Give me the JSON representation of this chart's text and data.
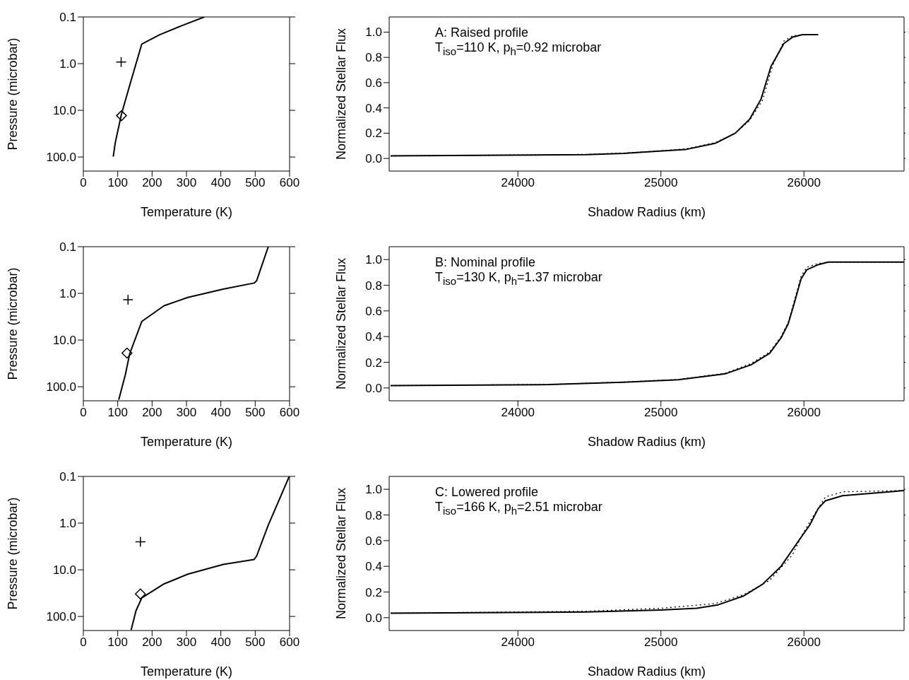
{
  "chart_data": [
    {
      "type": "line",
      "xlabel": "Temperature (K)",
      "ylabel": "Pressure (microbar)",
      "xlim": [
        0,
        600
      ],
      "xticks": [
        0,
        100,
        200,
        300,
        400,
        500,
        600
      ],
      "ylim": [
        200,
        0.1
      ],
      "yticks": [
        {
          "value": 0.1,
          "label": "0.1"
        },
        {
          "value": 1,
          "label": "1.0"
        },
        {
          "value": 10,
          "label": "10.0"
        },
        {
          "value": 100,
          "label": "100.0"
        }
      ],
      "log": "y",
      "series": [
        {
          "color": "#000000",
          "x": [
            87,
            93,
            111,
            135,
            170,
            222,
            290,
            352
          ],
          "values": [
            98,
            49,
            12,
            2.9,
            0.38,
            0.24,
            0.15,
            0.1
          ]
        },
        {
          "type": "scatter",
          "marker": "cross",
          "color": "#000000",
          "x": [
            110
          ],
          "values": [
            0.92
          ]
        },
        {
          "type": "scatter",
          "marker": "diamond",
          "color": "#000000",
          "x": [
            111
          ],
          "values": [
            13
          ]
        }
      ]
    },
    {
      "type": "line",
      "xlabel": "Shadow Radius (km)",
      "ylabel": "Normalized Stellar Flux",
      "xlim": [
        23100,
        26700
      ],
      "xticks": [
        24000,
        25000,
        26000
      ],
      "ylim": [
        -0.1,
        1.12
      ],
      "yticks": [
        {
          "value": 0,
          "label": "0.0"
        },
        {
          "value": 0.2,
          "label": "0.2"
        },
        {
          "value": 0.4,
          "label": "0.4"
        },
        {
          "value": 0.6,
          "label": "0.6"
        },
        {
          "value": 0.8,
          "label": "0.8"
        },
        {
          "value": 1,
          "label": "1.0"
        }
      ],
      "annotations": [
        "A: Raised profile",
        "T$_{iso}$=110 K, p$_{h}$=0.92 microbar"
      ],
      "series": [
        {
          "color": "#000000",
          "line_style": "solid",
          "x": [
            23110,
            24480,
            24740,
            24990,
            25170,
            25380,
            25520,
            25620,
            25700,
            25770,
            25860,
            25920,
            25990,
            26100
          ],
          "values": [
            0.02,
            0.03,
            0.04,
            0.058,
            0.07,
            0.12,
            0.2,
            0.31,
            0.47,
            0.73,
            0.91,
            0.96,
            0.98,
            0.98
          ]
        },
        {
          "color": "#000000",
          "line_style": "dotted",
          "x": [
            23110,
            24480,
            24740,
            24990,
            25170,
            25380,
            25520,
            25620,
            25710,
            25780,
            25860,
            25920,
            25990,
            26100
          ],
          "values": [
            0.02,
            0.032,
            0.042,
            0.06,
            0.075,
            0.125,
            0.2,
            0.3,
            0.46,
            0.73,
            0.93,
            0.97,
            0.98,
            0.98
          ]
        }
      ]
    },
    {
      "type": "line",
      "xlabel": "Temperature (K)",
      "ylabel": "Pressure (microbar)",
      "xlim": [
        0,
        600
      ],
      "xticks": [
        0,
        100,
        200,
        300,
        400,
        500,
        600
      ],
      "ylim": [
        200,
        0.1
      ],
      "yticks": [
        {
          "value": 0.1,
          "label": "0.1"
        },
        {
          "value": 1,
          "label": "1.0"
        },
        {
          "value": 10,
          "label": "10.0"
        },
        {
          "value": 100,
          "label": "100.0"
        }
      ],
      "log": "y",
      "series": [
        {
          "color": "#000000",
          "x": [
            103,
            122,
            135,
            170,
            235,
            304,
            407,
            497,
            504,
            538
          ],
          "values": [
            190,
            56,
            19.5,
            4,
            1.84,
            1.22,
            0.81,
            0.6,
            0.54,
            0.1
          ]
        },
        {
          "type": "scatter",
          "marker": "cross",
          "color": "#000000",
          "x": [
            130
          ],
          "values": [
            1.37
          ]
        },
        {
          "type": "scatter",
          "marker": "diamond",
          "color": "#000000",
          "x": [
            127
          ],
          "values": [
            19
          ]
        }
      ]
    },
    {
      "type": "line",
      "xlabel": "Shadow Radius (km)",
      "ylabel": "Normalized Stellar Flux",
      "xlim": [
        23100,
        26700
      ],
      "xticks": [
        24000,
        25000,
        26000
      ],
      "ylim": [
        -0.1,
        1.1
      ],
      "yticks": [
        {
          "value": 0,
          "label": "0.0"
        },
        {
          "value": 0.2,
          "label": "0.2"
        },
        {
          "value": 0.4,
          "label": "0.4"
        },
        {
          "value": 0.6,
          "label": "0.6"
        },
        {
          "value": 0.8,
          "label": "0.8"
        },
        {
          "value": 1,
          "label": "1.0"
        }
      ],
      "annotations": [
        "B: Nominal profile",
        "T$_{iso}$=130 K, p$_{h}$=1.37 microbar"
      ],
      "series": [
        {
          "color": "#000000",
          "line_style": "solid",
          "x": [
            23110,
            24220,
            24740,
            25120,
            25450,
            25630,
            25760,
            25840,
            25890,
            25930,
            25980,
            26020,
            26100,
            26170,
            26700
          ],
          "values": [
            0.018,
            0.026,
            0.044,
            0.064,
            0.11,
            0.18,
            0.27,
            0.39,
            0.5,
            0.65,
            0.85,
            0.92,
            0.96,
            0.98,
            0.98
          ]
        },
        {
          "color": "#000000",
          "line_style": "dotted",
          "x": [
            23110,
            24220,
            24740,
            25120,
            25450,
            25630,
            25760,
            25840,
            25890,
            25930,
            25980,
            26020,
            26100,
            26170,
            26700
          ],
          "values": [
            0.018,
            0.027,
            0.046,
            0.066,
            0.115,
            0.19,
            0.28,
            0.4,
            0.51,
            0.67,
            0.87,
            0.94,
            0.97,
            0.98,
            0.98
          ]
        }
      ]
    },
    {
      "type": "line",
      "xlabel": "Temperature (K)",
      "ylabel": "Pressure (microbar)",
      "xlim": [
        0,
        600
      ],
      "xticks": [
        0,
        100,
        200,
        300,
        400,
        500,
        600
      ],
      "ylim": [
        200,
        0.1
      ],
      "yticks": [
        {
          "value": 0.1,
          "label": "0.1"
        },
        {
          "value": 1,
          "label": "1.0"
        },
        {
          "value": 10,
          "label": "10.0"
        },
        {
          "value": 100,
          "label": "100.0"
        }
      ],
      "log": "y",
      "series": [
        {
          "color": "#000000",
          "x": [
            139,
            153,
            170,
            235,
            304,
            407,
            497,
            504,
            538,
            599
          ],
          "values": [
            195,
            76,
            40,
            20,
            12.4,
            7.7,
            6,
            5.1,
            1.1,
            0.1
          ]
        },
        {
          "type": "scatter",
          "marker": "cross",
          "color": "#000000",
          "x": [
            166
          ],
          "values": [
            2.51
          ]
        },
        {
          "type": "scatter",
          "marker": "diamond",
          "color": "#000000",
          "x": [
            166
          ],
          "values": [
            33
          ]
        }
      ]
    },
    {
      "type": "line",
      "xlabel": "Shadow Radius (km)",
      "ylabel": "Normalized Stellar Flux",
      "xlim": [
        23100,
        26700
      ],
      "xticks": [
        24000,
        25000,
        26000
      ],
      "ylim": [
        -0.1,
        1.1
      ],
      "yticks": [
        {
          "value": 0,
          "label": "0.0"
        },
        {
          "value": 0.2,
          "label": "0.2"
        },
        {
          "value": 0.4,
          "label": "0.4"
        },
        {
          "value": 0.6,
          "label": "0.6"
        },
        {
          "value": 0.8,
          "label": "0.8"
        },
        {
          "value": 1,
          "label": "1.0"
        }
      ],
      "annotations": [
        "C: Lowered profile",
        "T$_{iso}$=166 K, p$_{h}$=2.51 microbar"
      ],
      "series": [
        {
          "color": "#000000",
          "line_style": "solid",
          "x": [
            23110,
            24480,
            25000,
            25250,
            25400,
            25580,
            25710,
            25840,
            25970,
            26040,
            26100,
            26150,
            26270,
            26700
          ],
          "values": [
            0.035,
            0.044,
            0.06,
            0.073,
            0.1,
            0.17,
            0.26,
            0.4,
            0.61,
            0.72,
            0.85,
            0.91,
            0.95,
            0.99
          ]
        },
        {
          "color": "#000000",
          "line_style": "dotted",
          "x": [
            23110,
            24480,
            25000,
            25380,
            25580,
            25760,
            25920,
            25990,
            26070,
            26150,
            26270,
            26700
          ],
          "values": [
            0.035,
            0.05,
            0.073,
            0.11,
            0.18,
            0.29,
            0.49,
            0.65,
            0.8,
            0.94,
            0.98,
            0.99
          ]
        }
      ]
    }
  ]
}
